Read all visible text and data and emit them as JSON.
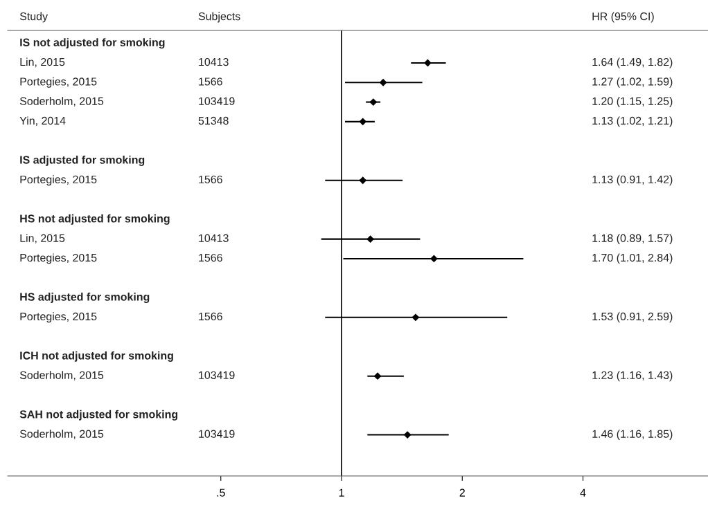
{
  "chart_data": {
    "type": "scatter",
    "orientation": "horizontal",
    "ylabel": "Study",
    "y2label": "HR (95% CI)",
    "categories": [
      "IS not adjusted for smoking",
      "Lin, 2015",
      "Portegies, 2015",
      "Soderholm, 2015",
      "Yin, 2014",
      null,
      "IS adjusted for smoking",
      "Portegies, 2015",
      null,
      "HS not adjusted for smoking",
      "Lin, 2015",
      "Portegies, 2015",
      null,
      "HS adjusted for smoking",
      "Portegies, 2015",
      null,
      "ICH not adjusted for smoking",
      "Soderholm, 2015",
      null,
      "SAH not adjusted for smoking",
      "Soderholm, 2015"
    ],
    "values": [
      null,
      1.64,
      1.27,
      1.2,
      1.13,
      null,
      null,
      1.13,
      null,
      null,
      1.18,
      1.7,
      null,
      null,
      1.53,
      null,
      null,
      1.23,
      null,
      null,
      1.46
    ],
    "errors": [
      null,
      [
        1.49,
        1.82
      ],
      [
        1.02,
        1.59
      ],
      [
        1.15,
        1.25
      ],
      [
        1.02,
        1.21
      ],
      null,
      null,
      [
        0.91,
        1.42
      ],
      null,
      null,
      [
        0.89,
        1.57
      ],
      [
        1.01,
        2.84
      ],
      null,
      null,
      [
        0.91,
        2.59
      ],
      null,
      null,
      [
        1.16,
        1.43
      ],
      null,
      null,
      [
        1.16,
        1.85
      ]
    ],
    "annotations": [
      "Subjects",
      "10413",
      "1.64 (1.49, 1.82)",
      "1566",
      "1.27 (1.02, 1.59)",
      "103419",
      "1.20 (1.15, 1.25)",
      "51348",
      "1.13 (1.02, 1.21)",
      "1566",
      "1.13 (0.91, 1.42)",
      "10413",
      "1.18 (0.89, 1.57)",
      "1566",
      "1.70 (1.01, 2.84)",
      "1566",
      "1.53 (0.91, 2.59)",
      "103419",
      "1.23 (1.16, 1.43)",
      "103419",
      "1.46 (1.16, 1.85)"
    ],
    "color": "#000000",
    "marker": "diamond",
    "log": "x",
    "xlim": [
      0.147,
      8.2
    ],
    "xticks": [
      {
        "value": 0.5,
        "label": ".5"
      },
      1,
      2,
      4
    ],
    "ref_lines": [
      {
        "axis": "x",
        "value": 1,
        "color": "#000000"
      }
    ],
    "grid": false,
    "legend": false
  }
}
